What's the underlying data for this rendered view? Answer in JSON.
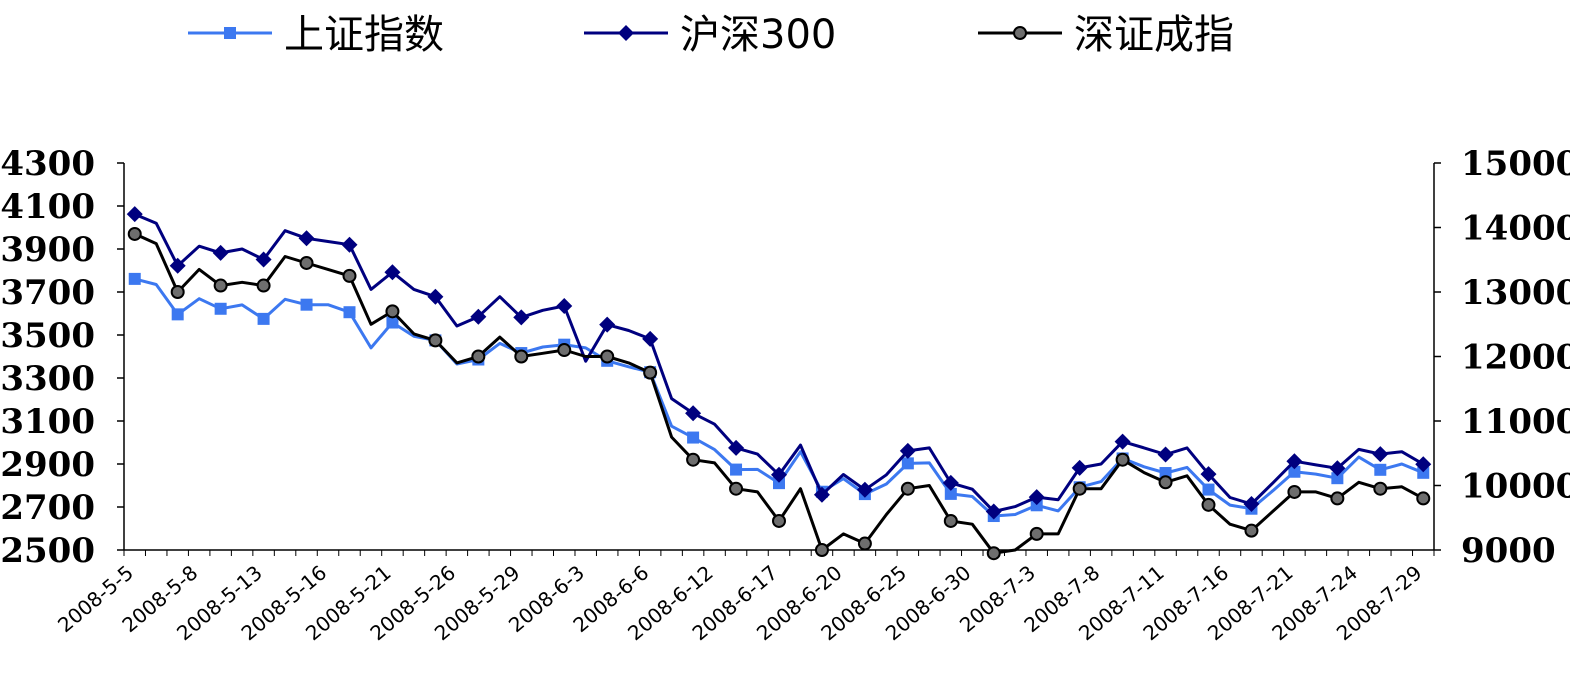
{
  "chart_data": {
    "type": "line",
    "title": "",
    "xlabel": "",
    "ylabel": "",
    "ylim_left": [
      2500,
      4300
    ],
    "yticks_left": [
      "4300",
      "4100",
      "3900",
      "3700",
      "3500",
      "3300",
      "3100",
      "2900",
      "2700",
      "2500"
    ],
    "ylim_right": [
      9000,
      15000
    ],
    "yticks_right": [
      "15000",
      "14000",
      "13000",
      "12000",
      "11000",
      "10000",
      "9000"
    ],
    "x_tick_labels": [
      "2008-5-5",
      "2008-5-8",
      "2008-5-13",
      "2008-5-16",
      "2008-5-21",
      "2008-5-26",
      "2008-5-29",
      "2008-6-3",
      "2008-6-6",
      "2008-6-12",
      "2008-6-17",
      "2008-6-20",
      "2008-6-25",
      "2008-6-30",
      "2008-7-3",
      "2008-7-8",
      "2008-7-11",
      "2008-7-16",
      "2008-7-21",
      "2008-7-24",
      "2008-7-29"
    ],
    "grid": false,
    "legend_position": "top",
    "series": [
      {
        "name": "上证指数",
        "axis": "left",
        "color": "#3c78f0",
        "marker": "square",
        "values": [
          3761,
          3735,
          3596,
          3669,
          3622,
          3640,
          3575,
          3666,
          3641,
          3641,
          3606,
          3440,
          3558,
          3494,
          3475,
          3365,
          3386,
          3461,
          3416,
          3444,
          3455,
          3440,
          3380,
          3352,
          3327,
          3076,
          3023,
          2967,
          2874,
          2875,
          2811,
          2957,
          2771,
          2832,
          2760,
          2807,
          2903,
          2905,
          2761,
          2749,
          2658,
          2665,
          2708,
          2682,
          2792,
          2818,
          2926,
          2887,
          2858,
          2884,
          2781,
          2709,
          2692,
          2776,
          2864,
          2853,
          2834,
          2932,
          2873,
          2900,
          2859
        ]
      },
      {
        "name": "沪深300",
        "axis": "left",
        "color": "#00007f",
        "marker": "diamond",
        "values": [
          4062,
          4020,
          3822,
          3913,
          3882,
          3900,
          3851,
          3985,
          3950,
          3935,
          3920,
          3712,
          3792,
          3712,
          3678,
          3542,
          3585,
          3678,
          3582,
          3615,
          3635,
          3378,
          3548,
          3521,
          3482,
          3204,
          3136,
          3085,
          2975,
          2946,
          2850,
          2988,
          2757,
          2851,
          2780,
          2850,
          2961,
          2975,
          2812,
          2783,
          2679,
          2702,
          2746,
          2734,
          2882,
          2900,
          3004,
          2975,
          2944,
          2975,
          2853,
          2744,
          2714,
          2812,
          2913,
          2896,
          2880,
          2968,
          2946,
          2957,
          2899
        ]
      },
      {
        "name": "深证成指",
        "axis": "right",
        "color": "#000000",
        "marker": "circle",
        "values": [
          13900,
          13750,
          13000,
          13350,
          13100,
          13150,
          13100,
          13550,
          13450,
          13350,
          13250,
          12500,
          12700,
          12350,
          12250,
          11900,
          12000,
          12300,
          12000,
          12050,
          12100,
          12000,
          12000,
          11900,
          11750,
          10750,
          10400,
          10350,
          9950,
          9900,
          9450,
          9950,
          9000,
          9250,
          9100,
          9550,
          9950,
          10000,
          9450,
          9400,
          8950,
          9000,
          9250,
          9250,
          9950,
          9950,
          10400,
          10200,
          10050,
          10150,
          9700,
          9400,
          9300,
          9600,
          9900,
          9900,
          9800,
          10050,
          9950,
          9980,
          9800
        ]
      }
    ]
  }
}
